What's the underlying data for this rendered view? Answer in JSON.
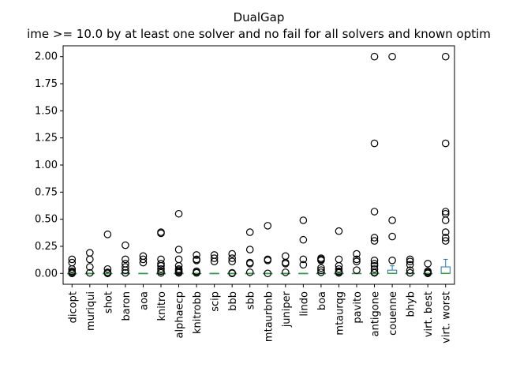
{
  "chart_data": {
    "type": "box",
    "title": "DualGap",
    "subtitle": "ime >= 10.0 by at least one solver and no fail for all solvers and known optim",
    "xlabel": "",
    "ylabel": "",
    "ylim": [
      -0.1,
      2.1
    ],
    "yticks": [
      0.0,
      0.25,
      0.5,
      0.75,
      1.0,
      1.25,
      1.5,
      1.75,
      2.0
    ],
    "ytick_labels": [
      "0.00",
      "0.25",
      "0.50",
      "0.75",
      "1.00",
      "1.25",
      "1.50",
      "1.75",
      "2.00"
    ],
    "grid": false,
    "legend": "none",
    "colors": {
      "box": "#1f77b4",
      "median": "#2ca02c",
      "outlier": "#000000",
      "axis": "#000000"
    },
    "categories": [
      "dicopt",
      "muriqui",
      "shot",
      "baron",
      "aoa",
      "knitro",
      "alphaecp",
      "knitrobb",
      "scip",
      "bbb",
      "sbb",
      "mtaurbnb",
      "juniper",
      "lindo",
      "boa",
      "mtaurqg",
      "pavito",
      "antigone",
      "couenne",
      "bhyb",
      "virt. best",
      "virt. worst"
    ],
    "boxes": [
      {
        "name": "dicopt",
        "q1": 0.0,
        "median": 0.0,
        "q3": 0.0,
        "whisker_low": 0.0,
        "whisker_high": 0.0,
        "outliers": [
          0.13,
          0.1,
          0.04,
          0.02,
          0.01,
          0.005,
          0.0
        ]
      },
      {
        "name": "muriqui",
        "q1": 0.0,
        "median": 0.0,
        "q3": 0.0,
        "whisker_low": 0.0,
        "whisker_high": 0.0,
        "outliers": [
          0.19,
          0.13,
          0.06,
          0.005
        ]
      },
      {
        "name": "shot",
        "q1": 0.0,
        "median": 0.0,
        "q3": 0.0,
        "whisker_low": 0.0,
        "whisker_high": 0.0,
        "outliers": [
          0.36,
          0.04,
          0.01,
          0.005,
          0.0
        ]
      },
      {
        "name": "baron",
        "q1": 0.0,
        "median": 0.0,
        "q3": 0.0,
        "whisker_low": 0.0,
        "whisker_high": 0.0,
        "outliers": [
          0.26,
          0.13,
          0.09,
          0.06,
          0.03,
          0.005
        ]
      },
      {
        "name": "aoa",
        "q1": 0.0,
        "median": 0.0,
        "q3": 0.0,
        "whisker_low": 0.0,
        "whisker_high": 0.0,
        "outliers": [
          0.16,
          0.13,
          0.1
        ]
      },
      {
        "name": "knitro",
        "q1": 0.0,
        "median": 0.0,
        "q3": 0.0,
        "whisker_low": 0.0,
        "whisker_high": 0.0,
        "outliers": [
          0.38,
          0.37,
          0.13,
          0.09,
          0.07,
          0.04,
          0.02,
          0.005
        ]
      },
      {
        "name": "alphaecp",
        "q1": 0.0,
        "median": 0.0,
        "q3": 0.0,
        "whisker_low": 0.0,
        "whisker_high": 0.0,
        "outliers": [
          0.55,
          0.22,
          0.13,
          0.07,
          0.04,
          0.03,
          0.02,
          0.01,
          0.005
        ]
      },
      {
        "name": "knitrobb",
        "q1": 0.0,
        "median": 0.0,
        "q3": 0.0,
        "whisker_low": 0.0,
        "whisker_high": 0.0,
        "outliers": [
          0.17,
          0.13,
          0.12,
          0.02,
          0.01,
          0.005
        ]
      },
      {
        "name": "scip",
        "q1": 0.0,
        "median": 0.0,
        "q3": 0.0,
        "whisker_low": 0.0,
        "whisker_high": 0.0,
        "outliers": [
          0.17,
          0.14,
          0.11
        ]
      },
      {
        "name": "bbb",
        "q1": 0.0,
        "median": 0.0,
        "q3": 0.0,
        "whisker_low": 0.0,
        "whisker_high": 0.0,
        "outliers": [
          0.18,
          0.14,
          0.11,
          0.005,
          0.0
        ]
      },
      {
        "name": "sbb",
        "q1": 0.0,
        "median": 0.0,
        "q3": 0.0,
        "whisker_low": 0.0,
        "whisker_high": 0.0,
        "outliers": [
          0.38,
          0.22,
          0.1,
          0.09,
          0.01
        ]
      },
      {
        "name": "mtaurbnb",
        "q1": 0.0,
        "median": 0.0,
        "q3": 0.0,
        "whisker_low": 0.0,
        "whisker_high": 0.0,
        "outliers": [
          0.44,
          0.13,
          0.12,
          0.0
        ]
      },
      {
        "name": "juniper",
        "q1": 0.0,
        "median": 0.0,
        "q3": 0.0,
        "whisker_low": 0.0,
        "whisker_high": 0.0,
        "outliers": [
          0.16,
          0.1,
          0.09,
          0.01
        ]
      },
      {
        "name": "lindo",
        "q1": 0.0,
        "median": 0.0,
        "q3": 0.0,
        "whisker_low": 0.0,
        "whisker_high": 0.0,
        "outliers": [
          0.49,
          0.31,
          0.13,
          0.08
        ]
      },
      {
        "name": "boa",
        "q1": 0.0,
        "median": 0.0,
        "q3": 0.0,
        "whisker_low": 0.0,
        "whisker_high": 0.0,
        "outliers": [
          0.14,
          0.13,
          0.12,
          0.05,
          0.03,
          0.01
        ]
      },
      {
        "name": "mtaurqg",
        "q1": 0.0,
        "median": 0.0,
        "q3": 0.0,
        "whisker_low": 0.0,
        "whisker_high": 0.0,
        "outliers": [
          0.39,
          0.13,
          0.07,
          0.04,
          0.02,
          0.01,
          0.005
        ]
      },
      {
        "name": "pavito",
        "q1": 0.0,
        "median": 0.0,
        "q3": 0.0,
        "whisker_low": 0.0,
        "whisker_high": 0.0,
        "outliers": [
          0.18,
          0.13,
          0.11,
          0.03
        ]
      },
      {
        "name": "antigone",
        "q1": 0.0,
        "median": 0.0,
        "q3": 0.0,
        "whisker_low": 0.0,
        "whisker_high": 0.0,
        "outliers": [
          2.0,
          1.2,
          0.57,
          0.33,
          0.3,
          0.12,
          0.09,
          0.07,
          0.04,
          0.01,
          0.005
        ]
      },
      {
        "name": "couenne",
        "q1": 0.0,
        "median": 0.0,
        "q3": 0.03,
        "whisker_low": 0.0,
        "whisker_high": 0.07,
        "outliers": [
          2.0,
          0.49,
          0.34,
          0.12
        ]
      },
      {
        "name": "bhyb",
        "q1": 0.0,
        "median": 0.0,
        "q3": 0.0,
        "whisker_low": 0.0,
        "whisker_high": 0.0,
        "outliers": [
          0.13,
          0.11,
          0.08,
          0.03,
          0.005
        ]
      },
      {
        "name": "virt. best",
        "q1": 0.0,
        "median": 0.0,
        "q3": 0.0,
        "whisker_low": 0.0,
        "whisker_high": 0.0,
        "outliers": [
          0.09,
          0.02,
          0.01,
          0.005,
          0.0
        ]
      },
      {
        "name": "virt. worst",
        "q1": 0.0,
        "median": 0.0,
        "q3": 0.06,
        "whisker_low": 0.0,
        "whisker_high": 0.13,
        "outliers": [
          2.0,
          1.2,
          0.57,
          0.55,
          0.49,
          0.38,
          0.33,
          0.3
        ]
      }
    ]
  }
}
